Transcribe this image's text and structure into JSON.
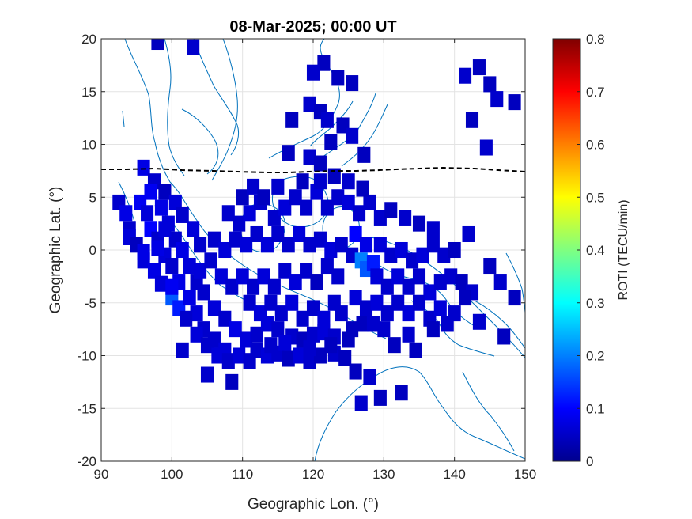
{
  "chart_data": {
    "type": "heatmap",
    "title": "08-Mar-2025; 00:00 UT",
    "xlabel": "Geographic Lon. (°)",
    "ylabel": "Geographic Lat. (°)",
    "colorbar_label": "ROTI (TECU/min)",
    "colormap": "jet",
    "xlim": [
      90,
      150
    ],
    "ylim": [
      -20,
      20
    ],
    "clim": [
      0,
      0.8
    ],
    "grid": true,
    "xticks": [
      90,
      100,
      110,
      120,
      130,
      140,
      150
    ],
    "xtick_labels": [
      "90",
      "100",
      "110",
      "120",
      "130",
      "140",
      "150"
    ],
    "yticks": [
      -20,
      -15,
      -10,
      -5,
      0,
      5,
      10,
      15,
      20
    ],
    "ytick_labels": [
      "-20",
      "-15",
      "-10",
      "-5",
      "0",
      "5",
      "10",
      "15",
      "20"
    ],
    "cticks": [
      0,
      0.1,
      0.2,
      0.3,
      0.4,
      0.5,
      0.6,
      0.7,
      0.8
    ],
    "ctick_labels": [
      "0",
      "0.1",
      "0.2",
      "0.3",
      "0.4",
      "0.5",
      "0.6",
      "0.7",
      "0.8"
    ],
    "cell_size_deg": [
      1.8,
      1.5
    ],
    "cells": [
      [
        98,
        19.7,
        0.05
      ],
      [
        103,
        19.2,
        0.06
      ],
      [
        121.5,
        17.7,
        0.05
      ],
      [
        120,
        16.8,
        0.06
      ],
      [
        123.5,
        16.3,
        0.05
      ],
      [
        125.5,
        15.8,
        0.05
      ],
      [
        119.5,
        13.8,
        0.06
      ],
      [
        121,
        13.1,
        0.05
      ],
      [
        122,
        12.3,
        0.06
      ],
      [
        117,
        12.3,
        0.05
      ],
      [
        124.2,
        11.8,
        0.05
      ],
      [
        125.5,
        10.8,
        0.06
      ],
      [
        122.5,
        10.2,
        0.05
      ],
      [
        116.5,
        9.2,
        0.05
      ],
      [
        127.2,
        9.0,
        0.05
      ],
      [
        119.5,
        8.8,
        0.06
      ],
      [
        121,
        8.2,
        0.05
      ],
      [
        141.5,
        16.5,
        0.06
      ],
      [
        143.5,
        17.3,
        0.05
      ],
      [
        145,
        15.7,
        0.05
      ],
      [
        146,
        14.3,
        0.06
      ],
      [
        148.5,
        14.0,
        0.05
      ],
      [
        142.5,
        12.3,
        0.05
      ],
      [
        144.5,
        9.7,
        0.06
      ],
      [
        92.5,
        4.5,
        0.06
      ],
      [
        93.5,
        3.5,
        0.08
      ],
      [
        94,
        2.0,
        0.06
      ],
      [
        94,
        1.2,
        0.07
      ],
      [
        95,
        0.5,
        0.05
      ],
      [
        95.5,
        4.5,
        0.09
      ],
      [
        96.5,
        3.5,
        0.07
      ],
      [
        97,
        2.0,
        0.1
      ],
      [
        98,
        1.0,
        0.06
      ],
      [
        99,
        -0.5,
        0.07
      ],
      [
        100,
        -1.5,
        0.06
      ],
      [
        101,
        -3.0,
        0.08
      ],
      [
        96,
        7.8,
        0.08
      ],
      [
        97.5,
        6.5,
        0.06
      ],
      [
        99,
        5.5,
        0.05
      ],
      [
        100.5,
        4.5,
        0.07
      ],
      [
        101.5,
        3.3,
        0.06
      ],
      [
        103,
        2.0,
        0.07
      ],
      [
        104,
        0.5,
        0.06
      ],
      [
        97,
        5.5,
        0.09
      ],
      [
        98.5,
        4.0,
        0.08
      ],
      [
        99.5,
        2.5,
        0.07
      ],
      [
        100.5,
        1.0,
        0.06
      ],
      [
        101.5,
        0.0,
        0.08
      ],
      [
        102.5,
        -1.5,
        0.07
      ],
      [
        103.5,
        -3.0,
        0.06
      ],
      [
        100,
        -4.5,
        0.17
      ],
      [
        101,
        -5.5,
        0.12
      ],
      [
        102.5,
        -4.5,
        0.08
      ],
      [
        103.5,
        -6.0,
        0.07
      ],
      [
        104.5,
        -7.5,
        0.06
      ],
      [
        106,
        -8.5,
        0.06
      ],
      [
        107.5,
        -9.5,
        0.07
      ],
      [
        104.5,
        -4.0,
        0.06
      ],
      [
        106,
        -5.5,
        0.07
      ],
      [
        107.5,
        -6.5,
        0.06
      ],
      [
        109,
        -7.5,
        0.08
      ],
      [
        110.5,
        -8.5,
        0.07
      ],
      [
        112,
        -9.5,
        0.06
      ],
      [
        113.5,
        -10.0,
        0.07
      ],
      [
        115,
        -9.8,
        0.06
      ],
      [
        116.5,
        -10.3,
        0.05
      ],
      [
        118,
        -10.0,
        0.07
      ],
      [
        119.5,
        -10.5,
        0.06
      ],
      [
        121,
        -10.0,
        0.05
      ],
      [
        123,
        -9.8,
        0.06
      ],
      [
        124.5,
        -10.2,
        0.05
      ],
      [
        101.5,
        -9.5,
        0.06
      ],
      [
        105,
        -11.8,
        0.06
      ],
      [
        108.5,
        -12.5,
        0.05
      ],
      [
        112,
        -8.0,
        0.06
      ],
      [
        113.5,
        -7.0,
        0.07
      ],
      [
        115,
        -7.5,
        0.06
      ],
      [
        117,
        -8.2,
        0.06
      ],
      [
        118.5,
        -8.5,
        0.05
      ],
      [
        120,
        -8.0,
        0.06
      ],
      [
        121.5,
        -7.8,
        0.07
      ],
      [
        123,
        -8.2,
        0.06
      ],
      [
        125,
        -8.5,
        0.05
      ],
      [
        127,
        -7.0,
        0.05
      ],
      [
        104,
        -2.0,
        0.07
      ],
      [
        105.5,
        -1.0,
        0.06
      ],
      [
        107,
        -2.5,
        0.07
      ],
      [
        108.5,
        -3.5,
        0.06
      ],
      [
        110,
        -2.5,
        0.07
      ],
      [
        111.5,
        -3.5,
        0.06
      ],
      [
        113,
        -2.5,
        0.07
      ],
      [
        114.5,
        -3.5,
        0.06
      ],
      [
        116,
        -2.0,
        0.06
      ],
      [
        117.5,
        -3.0,
        0.07
      ],
      [
        119,
        -2.0,
        0.06
      ],
      [
        120.5,
        -3.0,
        0.05
      ],
      [
        122,
        -1.5,
        0.06
      ],
      [
        123.5,
        -2.5,
        0.06
      ],
      [
        106,
        1.0,
        0.06
      ],
      [
        107.5,
        0.0,
        0.07
      ],
      [
        109,
        1.0,
        0.06
      ],
      [
        110.5,
        0.5,
        0.07
      ],
      [
        112,
        1.5,
        0.06
      ],
      [
        113.5,
        0.5,
        0.07
      ],
      [
        115,
        1.5,
        0.06
      ],
      [
        116.5,
        0.5,
        0.06
      ],
      [
        118,
        1.5,
        0.07
      ],
      [
        119.5,
        0.5,
        0.06
      ],
      [
        121,
        1.0,
        0.06
      ],
      [
        122.5,
        0.0,
        0.07
      ],
      [
        124,
        0.5,
        0.06
      ],
      [
        125.5,
        -0.5,
        0.06
      ],
      [
        108,
        3.5,
        0.06
      ],
      [
        109.5,
        2.5,
        0.06
      ],
      [
        111,
        3.5,
        0.07
      ],
      [
        112.5,
        4.5,
        0.06
      ],
      [
        114.5,
        3.0,
        0.06
      ],
      [
        116,
        4.0,
        0.07
      ],
      [
        117.5,
        5.0,
        0.06
      ],
      [
        119,
        4.0,
        0.06
      ],
      [
        120.5,
        5.5,
        0.07
      ],
      [
        122,
        4.0,
        0.06
      ],
      [
        123.5,
        5.0,
        0.06
      ],
      [
        125,
        4.5,
        0.07
      ],
      [
        126.5,
        3.5,
        0.06
      ],
      [
        128,
        4.5,
        0.06
      ],
      [
        110,
        5.0,
        0.05
      ],
      [
        111.5,
        6.0,
        0.06
      ],
      [
        113,
        5.0,
        0.05
      ],
      [
        115,
        6.0,
        0.06
      ],
      [
        118.5,
        6.5,
        0.05
      ],
      [
        121,
        6.5,
        0.06
      ],
      [
        123,
        7.0,
        0.05
      ],
      [
        125,
        6.5,
        0.06
      ],
      [
        127,
        5.8,
        0.05
      ],
      [
        129.5,
        3.0,
        0.06
      ],
      [
        131,
        3.8,
        0.05
      ],
      [
        133,
        3.0,
        0.06
      ],
      [
        135,
        2.5,
        0.05
      ],
      [
        137,
        2.0,
        0.06
      ],
      [
        126,
        1.5,
        0.1
      ],
      [
        127.5,
        0.5,
        0.08
      ],
      [
        126.8,
        -1.0,
        0.2
      ],
      [
        127.5,
        -1.8,
        0.17
      ],
      [
        128.5,
        -1.2,
        0.12
      ],
      [
        129.5,
        0.5,
        0.07
      ],
      [
        131,
        -0.5,
        0.06
      ],
      [
        132.5,
        0.0,
        0.07
      ],
      [
        134,
        -1.0,
        0.06
      ],
      [
        135.5,
        -0.5,
        0.07
      ],
      [
        137,
        0.5,
        0.06
      ],
      [
        138.5,
        -0.5,
        0.06
      ],
      [
        140,
        0.0,
        0.05
      ],
      [
        142,
        1.5,
        0.06
      ],
      [
        129,
        -2.5,
        0.07
      ],
      [
        130.5,
        -3.5,
        0.06
      ],
      [
        132,
        -2.5,
        0.07
      ],
      [
        133.5,
        -3.5,
        0.06
      ],
      [
        135,
        -2.5,
        0.06
      ],
      [
        136.5,
        -4.0,
        0.07
      ],
      [
        138,
        -3.0,
        0.06
      ],
      [
        139.5,
        -2.5,
        0.06
      ],
      [
        141,
        -3.0,
        0.05
      ],
      [
        142.5,
        -4.0,
        0.06
      ],
      [
        145,
        -1.5,
        0.05
      ],
      [
        146.5,
        -3.0,
        0.06
      ],
      [
        148.5,
        -4.5,
        0.05
      ],
      [
        126,
        -4.5,
        0.07
      ],
      [
        127.5,
        -5.5,
        0.06
      ],
      [
        129,
        -5.0,
        0.07
      ],
      [
        130.5,
        -6.0,
        0.06
      ],
      [
        132,
        -5.0,
        0.06
      ],
      [
        133.5,
        -6.0,
        0.07
      ],
      [
        135,
        -5.0,
        0.06
      ],
      [
        136.5,
        -6.5,
        0.06
      ],
      [
        138,
        -5.5,
        0.07
      ],
      [
        140,
        -6.0,
        0.06
      ],
      [
        141.5,
        -4.5,
        0.05
      ],
      [
        137,
        -7.5,
        0.05
      ],
      [
        139,
        -7.0,
        0.06
      ],
      [
        124,
        -6.0,
        0.06
      ],
      [
        125.5,
        -7.5,
        0.05
      ],
      [
        128.5,
        -7.0,
        0.06
      ],
      [
        130,
        -7.5,
        0.06
      ],
      [
        131.5,
        -9.0,
        0.05
      ],
      [
        133.5,
        -8.0,
        0.06
      ],
      [
        134.5,
        -9.5,
        0.05
      ],
      [
        143.5,
        -6.8,
        0.06
      ],
      [
        147,
        -8.2,
        0.05
      ],
      [
        126,
        -11.5,
        0.05
      ],
      [
        128,
        -12.0,
        0.06
      ],
      [
        129.5,
        -14.0,
        0.05
      ],
      [
        126.8,
        -14.5,
        0.06
      ],
      [
        132.5,
        -13.5,
        0.05
      ],
      [
        111,
        -5.0,
        0.06
      ],
      [
        112.5,
        -6.0,
        0.07
      ],
      [
        114,
        -5.0,
        0.06
      ],
      [
        115.5,
        -6.0,
        0.06
      ],
      [
        117,
        -5.0,
        0.07
      ],
      [
        118.5,
        -6.5,
        0.06
      ],
      [
        120,
        -5.5,
        0.06
      ],
      [
        121.5,
        -6.5,
        0.07
      ],
      [
        123,
        -5.0,
        0.06
      ],
      [
        114,
        -9.0,
        0.06
      ],
      [
        116,
        -8.8,
        0.07
      ],
      [
        119.5,
        -9.3,
        0.06
      ],
      [
        122.5,
        -9.0,
        0.05
      ],
      [
        96,
        -1.0,
        0.07
      ],
      [
        97.5,
        -2.0,
        0.08
      ],
      [
        98.5,
        -3.2,
        0.07
      ],
      [
        100,
        -3.5,
        0.09
      ],
      [
        102,
        -6.5,
        0.06
      ],
      [
        103.5,
        -8.0,
        0.07
      ],
      [
        105,
        -9.0,
        0.06
      ],
      [
        106.5,
        -10.0,
        0.07
      ],
      [
        108,
        -10.5,
        0.06
      ],
      [
        109.5,
        -10.0,
        0.07
      ],
      [
        111,
        -10.5,
        0.06
      ],
      [
        96,
        -0.2,
        0.08
      ],
      [
        98,
        0.2,
        0.08
      ],
      [
        99,
        2.0,
        0.07
      ]
    ]
  }
}
